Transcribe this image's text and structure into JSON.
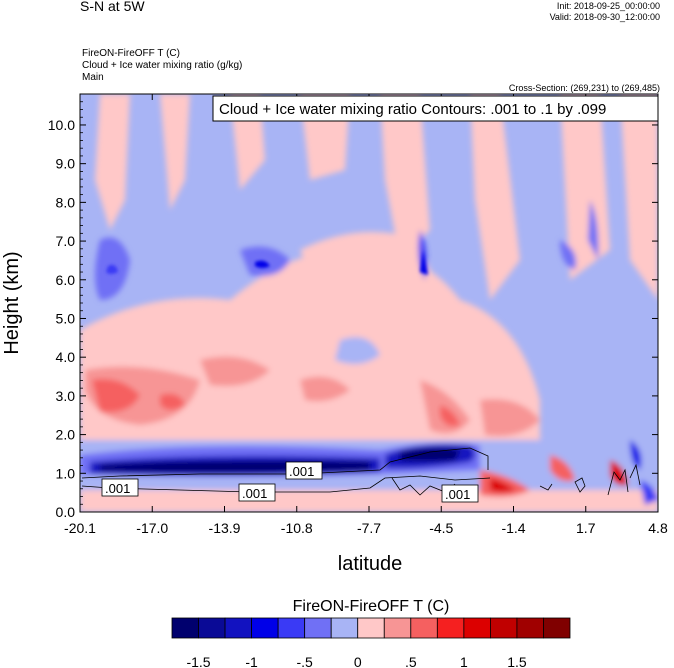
{
  "header": {
    "title": "S-N at 5W",
    "init": "Init: 2018-09-25_00:00:00",
    "valid": "Valid: 2018-09-30_12:00:00",
    "field1": "FireON-FireOFF T   (C)",
    "field2": "Cloud + Ice water mixing ratio   (g/kg)",
    "domain": "Main",
    "cross_section": "Cross-Section: (269,231) to (269,485)"
  },
  "chart_data": {
    "type": "heatmap",
    "overlay_title": "Cloud + Ice water mixing ratio Contours: .001 to .1 by .099",
    "xlabel": "latitude",
    "ylabel": "Height (km)",
    "xticks": [
      "-20.1",
      "-17.0",
      "-13.9",
      "-10.8",
      "-7.7",
      "-4.5",
      "-1.4",
      "1.7",
      "4.8"
    ],
    "yticks": [
      "0.0",
      "1.0",
      "2.0",
      "3.0",
      "4.0",
      "5.0",
      "6.0",
      "7.0",
      "8.0",
      "9.0",
      "10.0"
    ],
    "xlim": [
      -20.1,
      4.8
    ],
    "ylim": [
      0,
      10.8
    ],
    "contour_labels": [
      ".001",
      ".001",
      ".001",
      ".001"
    ],
    "colorbar": {
      "title": "FireON-FireOFF T  (C)",
      "tick_labels": [
        "-1.5",
        "-1",
        "-.5",
        "0",
        ".5",
        "1",
        "1.5"
      ],
      "colors": [
        "#00006e",
        "#0a0a96",
        "#1212c0",
        "#0000e8",
        "#3a3af5",
        "#7070f5",
        "#a8b4f5",
        "#ffc8c8",
        "#f79595",
        "#f56060",
        "#f52020",
        "#dc0000",
        "#c00000",
        "#a00000",
        "#800000"
      ]
    }
  }
}
